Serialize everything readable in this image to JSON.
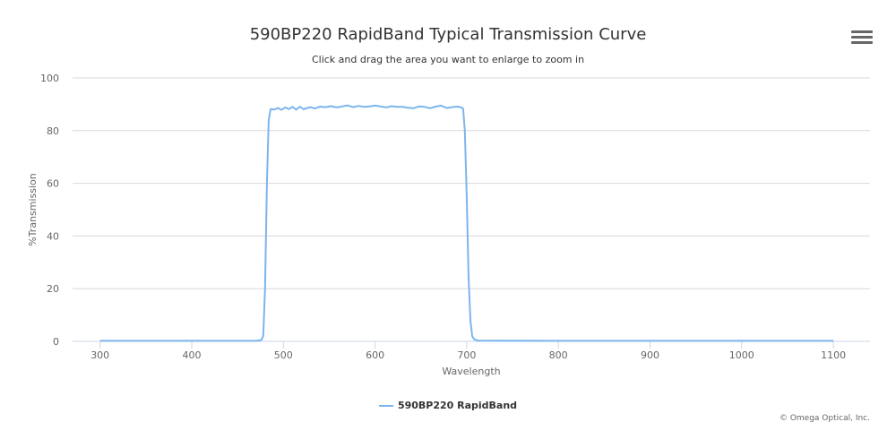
{
  "chart_data": {
    "type": "line",
    "title": "590BP220 RapidBand Typical Transmission Curve",
    "subtitle": "Click and drag the area you want to enlarge to zoom in",
    "xlabel": "Wavelength",
    "ylabel": "%Transmission",
    "xlim": [
      270,
      1140
    ],
    "ylim": [
      0,
      100
    ],
    "x_ticks": [
      300,
      400,
      500,
      600,
      700,
      800,
      900,
      1000,
      1100
    ],
    "y_ticks": [
      0,
      20,
      40,
      60,
      80,
      100
    ],
    "grid": "horizontal",
    "legend_position": "bottom-center",
    "series": [
      {
        "name": "590BP220 RapidBand",
        "color": "#7cb5ec",
        "points": [
          [
            300,
            0.2
          ],
          [
            400,
            0.2
          ],
          [
            470,
            0.2
          ],
          [
            476,
            0.5
          ],
          [
            478,
            2
          ],
          [
            480,
            20
          ],
          [
            482,
            60
          ],
          [
            484,
            84
          ],
          [
            486,
            88.2
          ],
          [
            490,
            88.0
          ],
          [
            494,
            88.6
          ],
          [
            498,
            87.9
          ],
          [
            502,
            88.8
          ],
          [
            506,
            88.2
          ],
          [
            510,
            89.0
          ],
          [
            514,
            88.0
          ],
          [
            518,
            89.1
          ],
          [
            522,
            88.1
          ],
          [
            526,
            88.6
          ],
          [
            530,
            88.9
          ],
          [
            534,
            88.4
          ],
          [
            540,
            89.1
          ],
          [
            546,
            88.9
          ],
          [
            552,
            89.3
          ],
          [
            558,
            88.8
          ],
          [
            564,
            89.2
          ],
          [
            570,
            89.6
          ],
          [
            576,
            88.9
          ],
          [
            582,
            89.4
          ],
          [
            588,
            89.0
          ],
          [
            594,
            89.2
          ],
          [
            600,
            89.5
          ],
          [
            606,
            89.2
          ],
          [
            612,
            88.8
          ],
          [
            618,
            89.3
          ],
          [
            624,
            89.0
          ],
          [
            630,
            89.0
          ],
          [
            636,
            88.7
          ],
          [
            642,
            88.5
          ],
          [
            648,
            89.2
          ],
          [
            654,
            89.0
          ],
          [
            660,
            88.5
          ],
          [
            666,
            89.1
          ],
          [
            672,
            89.5
          ],
          [
            678,
            88.6
          ],
          [
            684,
            88.9
          ],
          [
            690,
            89.1
          ],
          [
            694,
            88.8
          ],
          [
            696,
            88.5
          ],
          [
            698,
            80
          ],
          [
            700,
            55
          ],
          [
            702,
            25
          ],
          [
            704,
            8
          ],
          [
            706,
            2
          ],
          [
            708,
            0.8
          ],
          [
            712,
            0.3
          ],
          [
            800,
            0.2
          ],
          [
            880,
            0.2
          ],
          [
            1000,
            0.2
          ],
          [
            1100,
            0.2
          ]
        ]
      }
    ]
  },
  "ui": {
    "menu_icon": "hamburger-menu-icon",
    "legend_label": "590BP220 RapidBand",
    "credits": "© Omega Optical, Inc."
  }
}
